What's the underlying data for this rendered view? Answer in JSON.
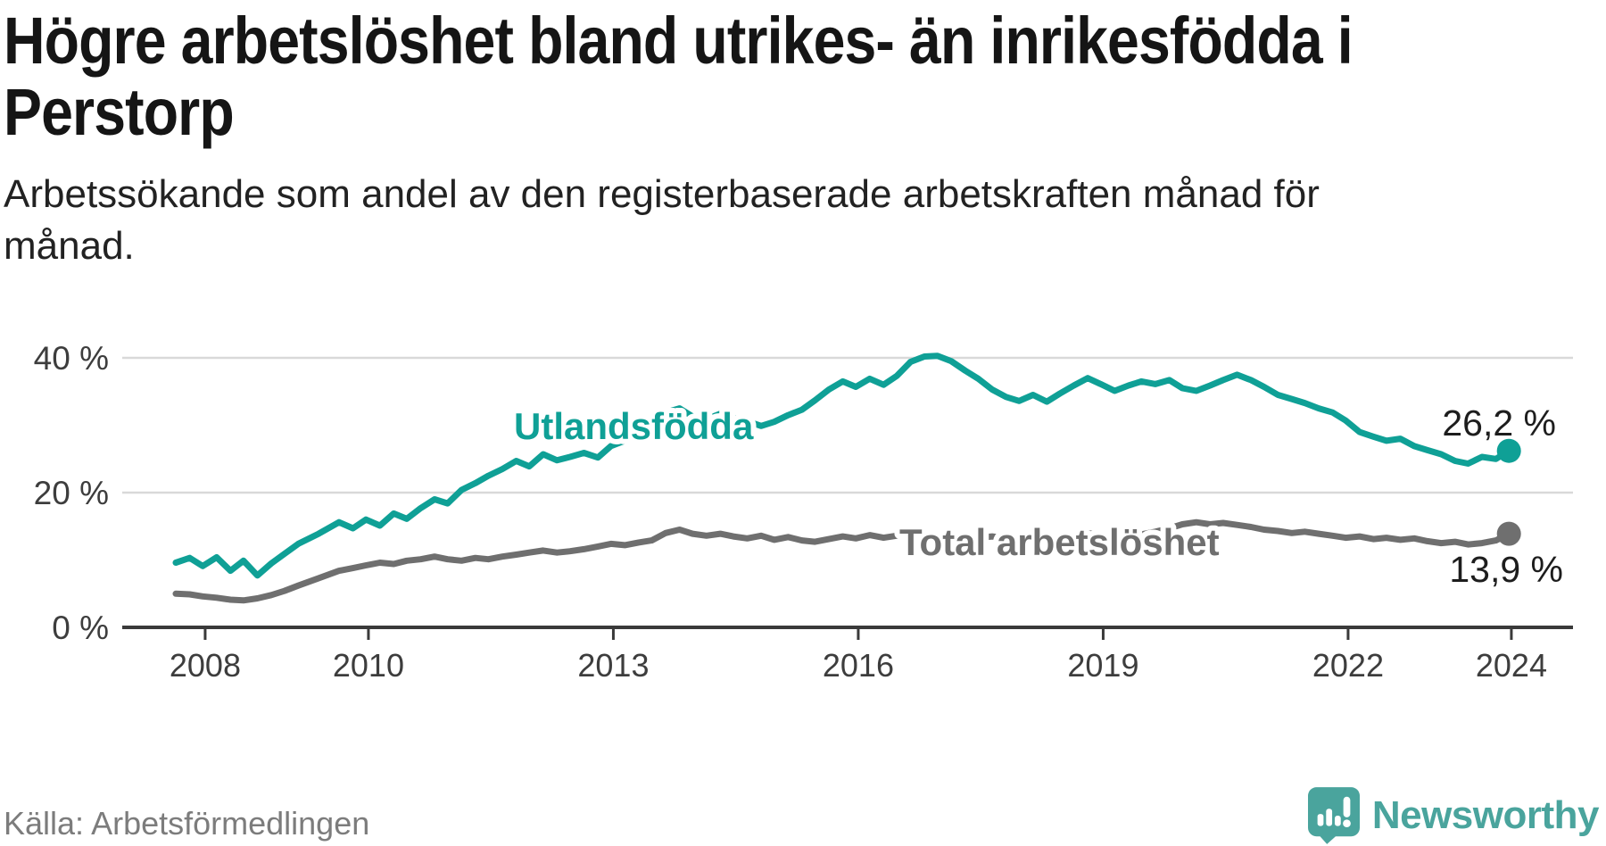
{
  "header": {
    "title_line1": "Högre arbetslöshet bland utrikes- än inrikesfödda i",
    "title_line2": "Perstorp",
    "subtitle_line1": "Arbetssökande som andel av den registerbaserade arbetskraften månad för",
    "subtitle_line2": "månad."
  },
  "footer": {
    "source": "Källa: Arbetsförmedlingen",
    "brand_name": "Newsworthy"
  },
  "colors": {
    "accent_teal": "#0fa096",
    "total_gray": "#6f6f6f",
    "grid": "#d9d9d9",
    "axis": "#3a3a3a",
    "tick_text": "#3d3d3d",
    "value_text": "#1d1d1d",
    "brand_teal": "#4aa49d",
    "muted_text": "#7c7c7c"
  },
  "chart_data": {
    "type": "line",
    "title": "Högre arbetslöshet bland utrikes- än inrikesfödda i Perstorp",
    "subtitle": "Arbetssökande som andel av den registerbaserade arbetskraften månad för månad.",
    "x_unit": "decimal_year_monthly",
    "xlabel": "",
    "ylabel": "",
    "ylim": [
      0,
      44
    ],
    "grid": "horizontal",
    "legend_position": "inline-labels",
    "xticks": [
      {
        "value": 2008,
        "label": "2008"
      },
      {
        "value": 2010,
        "label": "2010"
      },
      {
        "value": 2013,
        "label": "2013"
      },
      {
        "value": 2016,
        "label": "2016"
      },
      {
        "value": 2019,
        "label": "2019"
      },
      {
        "value": 2022,
        "label": "2022"
      },
      {
        "value": 2024,
        "label": "2024"
      }
    ],
    "yticks": [
      {
        "value": 0,
        "label": "0 %"
      },
      {
        "value": 20,
        "label": "20 %"
      },
      {
        "value": 40,
        "label": "40 %"
      }
    ],
    "series": [
      {
        "id": "foreign",
        "name": "Utlandsfödda",
        "color": "#0fa096",
        "end_value": 26.2,
        "end_label": "26,2 %",
        "points": [
          [
            2008.0,
            9.6
          ],
          [
            2008.17,
            10.3
          ],
          [
            2008.33,
            9.1
          ],
          [
            2008.5,
            10.4
          ],
          [
            2008.67,
            8.4
          ],
          [
            2008.83,
            9.9
          ],
          [
            2009.0,
            7.7
          ],
          [
            2009.17,
            9.5
          ],
          [
            2009.33,
            10.9
          ],
          [
            2009.5,
            12.4
          ],
          [
            2009.75,
            13.9
          ],
          [
            2010.0,
            15.6
          ],
          [
            2010.17,
            14.7
          ],
          [
            2010.33,
            16.0
          ],
          [
            2010.5,
            15.1
          ],
          [
            2010.67,
            16.9
          ],
          [
            2010.83,
            16.1
          ],
          [
            2011.0,
            17.7
          ],
          [
            2011.17,
            19.0
          ],
          [
            2011.33,
            18.4
          ],
          [
            2011.5,
            20.4
          ],
          [
            2011.67,
            21.4
          ],
          [
            2011.83,
            22.5
          ],
          [
            2012.0,
            23.5
          ],
          [
            2012.17,
            24.7
          ],
          [
            2012.33,
            23.9
          ],
          [
            2012.5,
            25.7
          ],
          [
            2012.67,
            24.8
          ],
          [
            2012.83,
            25.3
          ],
          [
            2013.0,
            25.9
          ],
          [
            2013.17,
            25.2
          ],
          [
            2013.33,
            26.9
          ],
          [
            2013.5,
            27.7
          ],
          [
            2013.67,
            28.9
          ],
          [
            2013.83,
            30.3
          ],
          [
            2014.0,
            31.9
          ],
          [
            2014.17,
            32.5
          ],
          [
            2014.33,
            31.3
          ],
          [
            2014.5,
            30.9
          ],
          [
            2014.67,
            31.7
          ],
          [
            2014.83,
            31.1
          ],
          [
            2015.0,
            30.6
          ],
          [
            2015.17,
            29.9
          ],
          [
            2015.33,
            30.5
          ],
          [
            2015.5,
            31.5
          ],
          [
            2015.67,
            32.3
          ],
          [
            2015.83,
            33.7
          ],
          [
            2016.0,
            35.3
          ],
          [
            2016.17,
            36.5
          ],
          [
            2016.33,
            35.7
          ],
          [
            2016.5,
            36.9
          ],
          [
            2016.67,
            36.0
          ],
          [
            2016.83,
            37.3
          ],
          [
            2017.0,
            39.4
          ],
          [
            2017.17,
            40.2
          ],
          [
            2017.33,
            40.3
          ],
          [
            2017.5,
            39.5
          ],
          [
            2017.67,
            38.1
          ],
          [
            2017.83,
            36.9
          ],
          [
            2018.0,
            35.3
          ],
          [
            2018.17,
            34.2
          ],
          [
            2018.33,
            33.6
          ],
          [
            2018.5,
            34.5
          ],
          [
            2018.67,
            33.5
          ],
          [
            2018.83,
            34.7
          ],
          [
            2019.0,
            35.9
          ],
          [
            2019.17,
            37.0
          ],
          [
            2019.33,
            36.1
          ],
          [
            2019.5,
            35.1
          ],
          [
            2019.67,
            35.9
          ],
          [
            2019.83,
            36.5
          ],
          [
            2020.0,
            36.1
          ],
          [
            2020.17,
            36.7
          ],
          [
            2020.33,
            35.5
          ],
          [
            2020.5,
            35.1
          ],
          [
            2020.67,
            35.9
          ],
          [
            2020.83,
            36.7
          ],
          [
            2021.0,
            37.5
          ],
          [
            2021.17,
            36.7
          ],
          [
            2021.33,
            35.7
          ],
          [
            2021.5,
            34.5
          ],
          [
            2021.67,
            33.9
          ],
          [
            2021.83,
            33.3
          ],
          [
            2022.0,
            32.5
          ],
          [
            2022.17,
            31.9
          ],
          [
            2022.33,
            30.7
          ],
          [
            2022.5,
            29.0
          ],
          [
            2022.67,
            28.3
          ],
          [
            2022.83,
            27.7
          ],
          [
            2023.0,
            28.0
          ],
          [
            2023.17,
            26.9
          ],
          [
            2023.33,
            26.3
          ],
          [
            2023.5,
            25.7
          ],
          [
            2023.67,
            24.7
          ],
          [
            2023.83,
            24.3
          ],
          [
            2024.0,
            25.3
          ],
          [
            2024.17,
            25.0
          ],
          [
            2024.33,
            26.2
          ]
        ]
      },
      {
        "id": "total",
        "name": "Total arbetslöshet",
        "color": "#6f6f6f",
        "end_value": 13.9,
        "end_label": "13,9 %",
        "points": [
          [
            2008.0,
            5.0
          ],
          [
            2008.17,
            4.9
          ],
          [
            2008.33,
            4.6
          ],
          [
            2008.5,
            4.4
          ],
          [
            2008.67,
            4.1
          ],
          [
            2008.83,
            4.0
          ],
          [
            2009.0,
            4.3
          ],
          [
            2009.17,
            4.8
          ],
          [
            2009.33,
            5.4
          ],
          [
            2009.5,
            6.2
          ],
          [
            2009.75,
            7.3
          ],
          [
            2010.0,
            8.4
          ],
          [
            2010.17,
            8.8
          ],
          [
            2010.33,
            9.2
          ],
          [
            2010.5,
            9.6
          ],
          [
            2010.67,
            9.4
          ],
          [
            2010.83,
            9.9
          ],
          [
            2011.0,
            10.1
          ],
          [
            2011.17,
            10.5
          ],
          [
            2011.33,
            10.1
          ],
          [
            2011.5,
            9.9
          ],
          [
            2011.67,
            10.3
          ],
          [
            2011.83,
            10.1
          ],
          [
            2012.0,
            10.5
          ],
          [
            2012.17,
            10.8
          ],
          [
            2012.33,
            11.1
          ],
          [
            2012.5,
            11.4
          ],
          [
            2012.67,
            11.1
          ],
          [
            2012.83,
            11.3
          ],
          [
            2013.0,
            11.6
          ],
          [
            2013.17,
            12.0
          ],
          [
            2013.33,
            12.4
          ],
          [
            2013.5,
            12.2
          ],
          [
            2013.67,
            12.6
          ],
          [
            2013.83,
            12.9
          ],
          [
            2014.0,
            14.0
          ],
          [
            2014.17,
            14.5
          ],
          [
            2014.33,
            13.9
          ],
          [
            2014.5,
            13.6
          ],
          [
            2014.67,
            13.9
          ],
          [
            2014.83,
            13.5
          ],
          [
            2015.0,
            13.2
          ],
          [
            2015.17,
            13.6
          ],
          [
            2015.33,
            13.0
          ],
          [
            2015.5,
            13.4
          ],
          [
            2015.67,
            12.9
          ],
          [
            2015.83,
            12.7
          ],
          [
            2016.0,
            13.1
          ],
          [
            2016.17,
            13.5
          ],
          [
            2016.33,
            13.2
          ],
          [
            2016.5,
            13.7
          ],
          [
            2016.67,
            13.3
          ],
          [
            2016.83,
            13.6
          ],
          [
            2017.0,
            13.8
          ],
          [
            2017.17,
            13.5
          ],
          [
            2017.33,
            13.1
          ],
          [
            2017.5,
            13.4
          ],
          [
            2017.67,
            13.0
          ],
          [
            2017.83,
            13.3
          ],
          [
            2018.0,
            13.5
          ],
          [
            2018.17,
            13.2
          ],
          [
            2018.33,
            12.9
          ],
          [
            2018.5,
            13.2
          ],
          [
            2018.67,
            13.0
          ],
          [
            2018.83,
            13.4
          ],
          [
            2019.0,
            13.7
          ],
          [
            2019.17,
            14.0
          ],
          [
            2019.33,
            13.6
          ],
          [
            2019.5,
            13.9
          ],
          [
            2019.67,
            14.1
          ],
          [
            2019.83,
            13.8
          ],
          [
            2020.0,
            14.2
          ],
          [
            2020.17,
            14.7
          ],
          [
            2020.33,
            15.3
          ],
          [
            2020.5,
            15.6
          ],
          [
            2020.67,
            15.3
          ],
          [
            2020.83,
            15.5
          ],
          [
            2021.0,
            15.2
          ],
          [
            2021.17,
            14.9
          ],
          [
            2021.33,
            14.5
          ],
          [
            2021.5,
            14.3
          ],
          [
            2021.67,
            14.0
          ],
          [
            2021.83,
            14.2
          ],
          [
            2022.0,
            13.9
          ],
          [
            2022.17,
            13.6
          ],
          [
            2022.33,
            13.3
          ],
          [
            2022.5,
            13.5
          ],
          [
            2022.67,
            13.1
          ],
          [
            2022.83,
            13.3
          ],
          [
            2023.0,
            13.0
          ],
          [
            2023.17,
            13.2
          ],
          [
            2023.33,
            12.8
          ],
          [
            2023.5,
            12.5
          ],
          [
            2023.67,
            12.7
          ],
          [
            2023.83,
            12.3
          ],
          [
            2024.0,
            12.5
          ],
          [
            2024.17,
            12.9
          ],
          [
            2024.33,
            13.9
          ]
        ]
      }
    ]
  }
}
